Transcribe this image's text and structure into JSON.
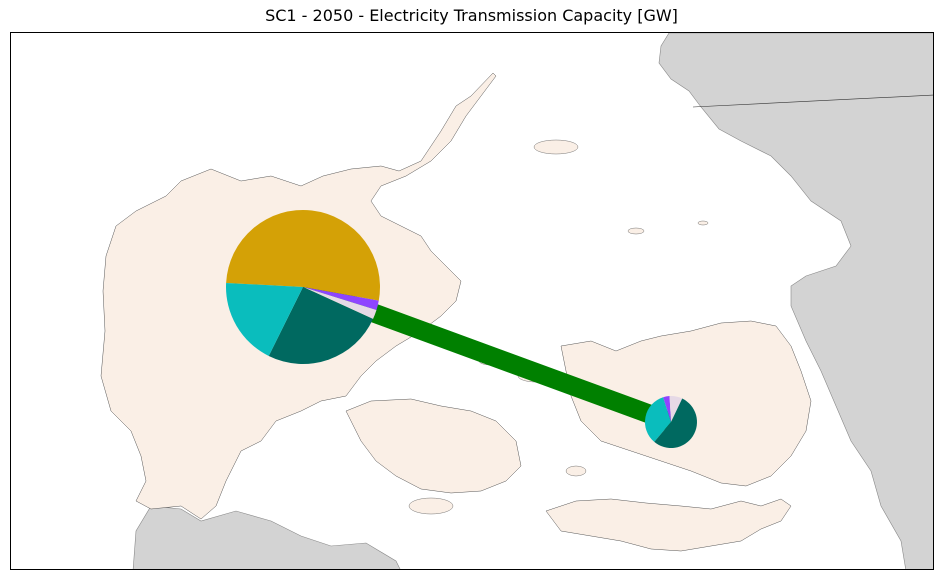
{
  "title": "SC1 - 2050 - Electricity Transmission Capacity [GW]",
  "map": {
    "region": "Denmark",
    "land_color": "#faefe6",
    "neighbor_color": "#d3d3d3",
    "sea_color": "#ffffff",
    "coast_color": "#555555"
  },
  "links": [
    {
      "from": "DK1",
      "to": "DK2",
      "color": "#008000"
    }
  ],
  "nodes": [
    {
      "id": "DK1",
      "slices": [
        {
          "name": "gold",
          "color": "#d4a106",
          "fraction": 0.52
        },
        {
          "name": "purple",
          "color": "#8e44ff",
          "fraction": 0.02
        },
        {
          "name": "lavender",
          "color": "#e6d9e6",
          "fraction": 0.02
        },
        {
          "name": "dark-teal",
          "color": "#006960",
          "fraction": 0.255
        },
        {
          "name": "cyan",
          "color": "#0abdbd",
          "fraction": 0.185
        }
      ]
    },
    {
      "id": "DK2",
      "slices": [
        {
          "name": "cyan",
          "color": "#0abdbd",
          "fraction": 0.34
        },
        {
          "name": "purple",
          "color": "#8e44ff",
          "fraction": 0.04
        },
        {
          "name": "lavender",
          "color": "#e6d9e6",
          "fraction": 0.08
        },
        {
          "name": "dark-teal",
          "color": "#006960",
          "fraction": 0.54
        }
      ]
    }
  ]
}
